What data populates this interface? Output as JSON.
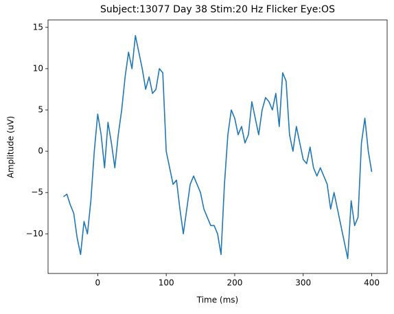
{
  "chart_data": {
    "type": "line",
    "title": "Subject:13077 Day 38 Stim:20 Hz Flicker Eye:OS",
    "xlabel": "Time (ms)",
    "ylabel": "Amplitude (uV)",
    "x": [
      -50,
      -45,
      -40,
      -35,
      -30,
      -25,
      -20,
      -15,
      -10,
      -5,
      0,
      5,
      10,
      15,
      20,
      25,
      30,
      35,
      40,
      45,
      50,
      55,
      60,
      65,
      70,
      75,
      80,
      85,
      90,
      95,
      100,
      105,
      110,
      115,
      120,
      125,
      130,
      135,
      140,
      145,
      150,
      155,
      160,
      165,
      170,
      175,
      180,
      185,
      190,
      195,
      200,
      205,
      210,
      215,
      220,
      225,
      230,
      235,
      240,
      245,
      250,
      255,
      260,
      265,
      270,
      275,
      280,
      285,
      290,
      295,
      300,
      305,
      310,
      315,
      320,
      325,
      330,
      335,
      340,
      345,
      350,
      355,
      360,
      365,
      370,
      375,
      380,
      385,
      390,
      395,
      400
    ],
    "series": [
      {
        "name": "OS",
        "color": "#1f77b4",
        "values": [
          -5.5,
          -5.2,
          -6.5,
          -7.5,
          -10.5,
          -12.5,
          -8.5,
          -10,
          -6,
          0,
          4.5,
          2,
          -2,
          3.5,
          1,
          -2,
          2,
          5,
          9,
          12,
          10,
          14,
          12,
          10,
          7.5,
          9,
          7,
          7.5,
          10,
          9.5,
          0,
          -2,
          -4,
          -3.5,
          -7,
          -10,
          -7,
          -4,
          -3,
          -4,
          -5,
          -7,
          -8,
          -9,
          -9,
          -10,
          -12.5,
          -4,
          2,
          5,
          4,
          2,
          3,
          1,
          2,
          6,
          4,
          2,
          5,
          6.5,
          6,
          5,
          7,
          3,
          9.5,
          8.5,
          2,
          0,
          3,
          1,
          -1,
          -1.5,
          0.5,
          -2,
          -3,
          -2,
          -3,
          -4,
          -7,
          -5,
          -7,
          -9,
          -11,
          -13,
          -6,
          -9,
          -8,
          1,
          4,
          0,
          -2.5
        ]
      }
    ],
    "xlim": [
      -72.5,
      422.5
    ],
    "xticks": [
      0,
      100,
      200,
      300,
      400
    ],
    "ylim": [
      -14.8,
      15.9
    ],
    "yticks": [
      {
        "value": -10,
        "label": "−10"
      },
      {
        "value": -5,
        "label": "−5"
      },
      0,
      5,
      10,
      15
    ]
  }
}
